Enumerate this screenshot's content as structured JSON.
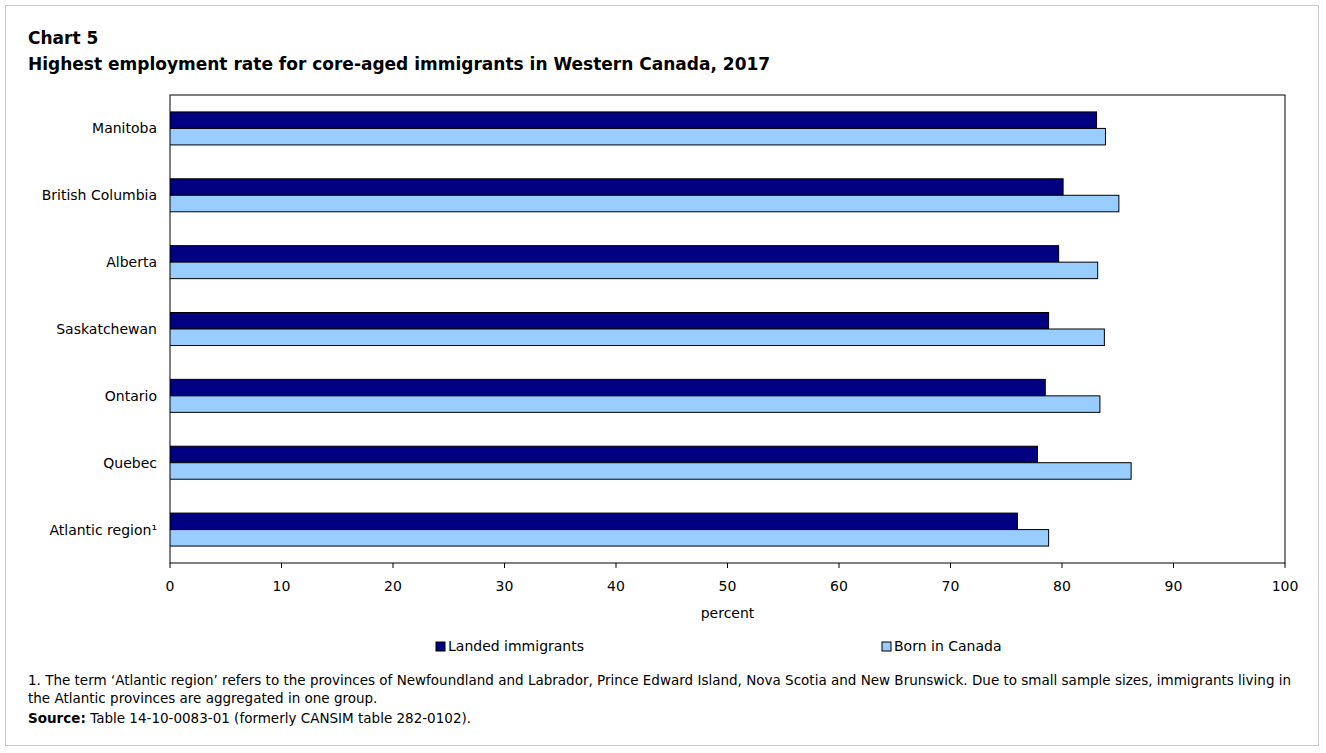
{
  "chart_data": {
    "type": "bar",
    "orientation": "horizontal",
    "title": "Chart 5",
    "subtitle": "Highest employment rate for core-aged immigrants in Western Canada, 2017",
    "categories": [
      "Manitoba",
      "British Columbia",
      "Alberta",
      "Saskatchewan",
      "Ontario",
      "Quebec",
      "Atlantic region¹"
    ],
    "series": [
      {
        "name": "Landed immigrants",
        "color": "#000080",
        "values": [
          83.1,
          80.1,
          79.7,
          78.8,
          78.5,
          77.8,
          76.0
        ]
      },
      {
        "name": "Born in Canada",
        "color": "#99ccff",
        "values": [
          83.9,
          85.1,
          83.2,
          83.8,
          83.4,
          86.2,
          78.8
        ]
      }
    ],
    "xlabel": "percent",
    "xlim": [
      0,
      100
    ],
    "xticks": [
      0,
      10,
      20,
      30,
      40,
      50,
      60,
      70,
      80,
      90,
      100
    ],
    "grid": false,
    "legend": "bottom",
    "footnote": "1. The term ‘Atlantic region’ refers to the provinces of Newfoundland and Labrador, Prince Edward Island, Nova Scotia and New Brunswick. Due to small sample sizes, immigrants living in the Atlantic provinces are aggregated in one group.",
    "source_label": "Source:",
    "source": "Table 14-10-0083-01 (formerly CANSIM table 282-0102)."
  }
}
